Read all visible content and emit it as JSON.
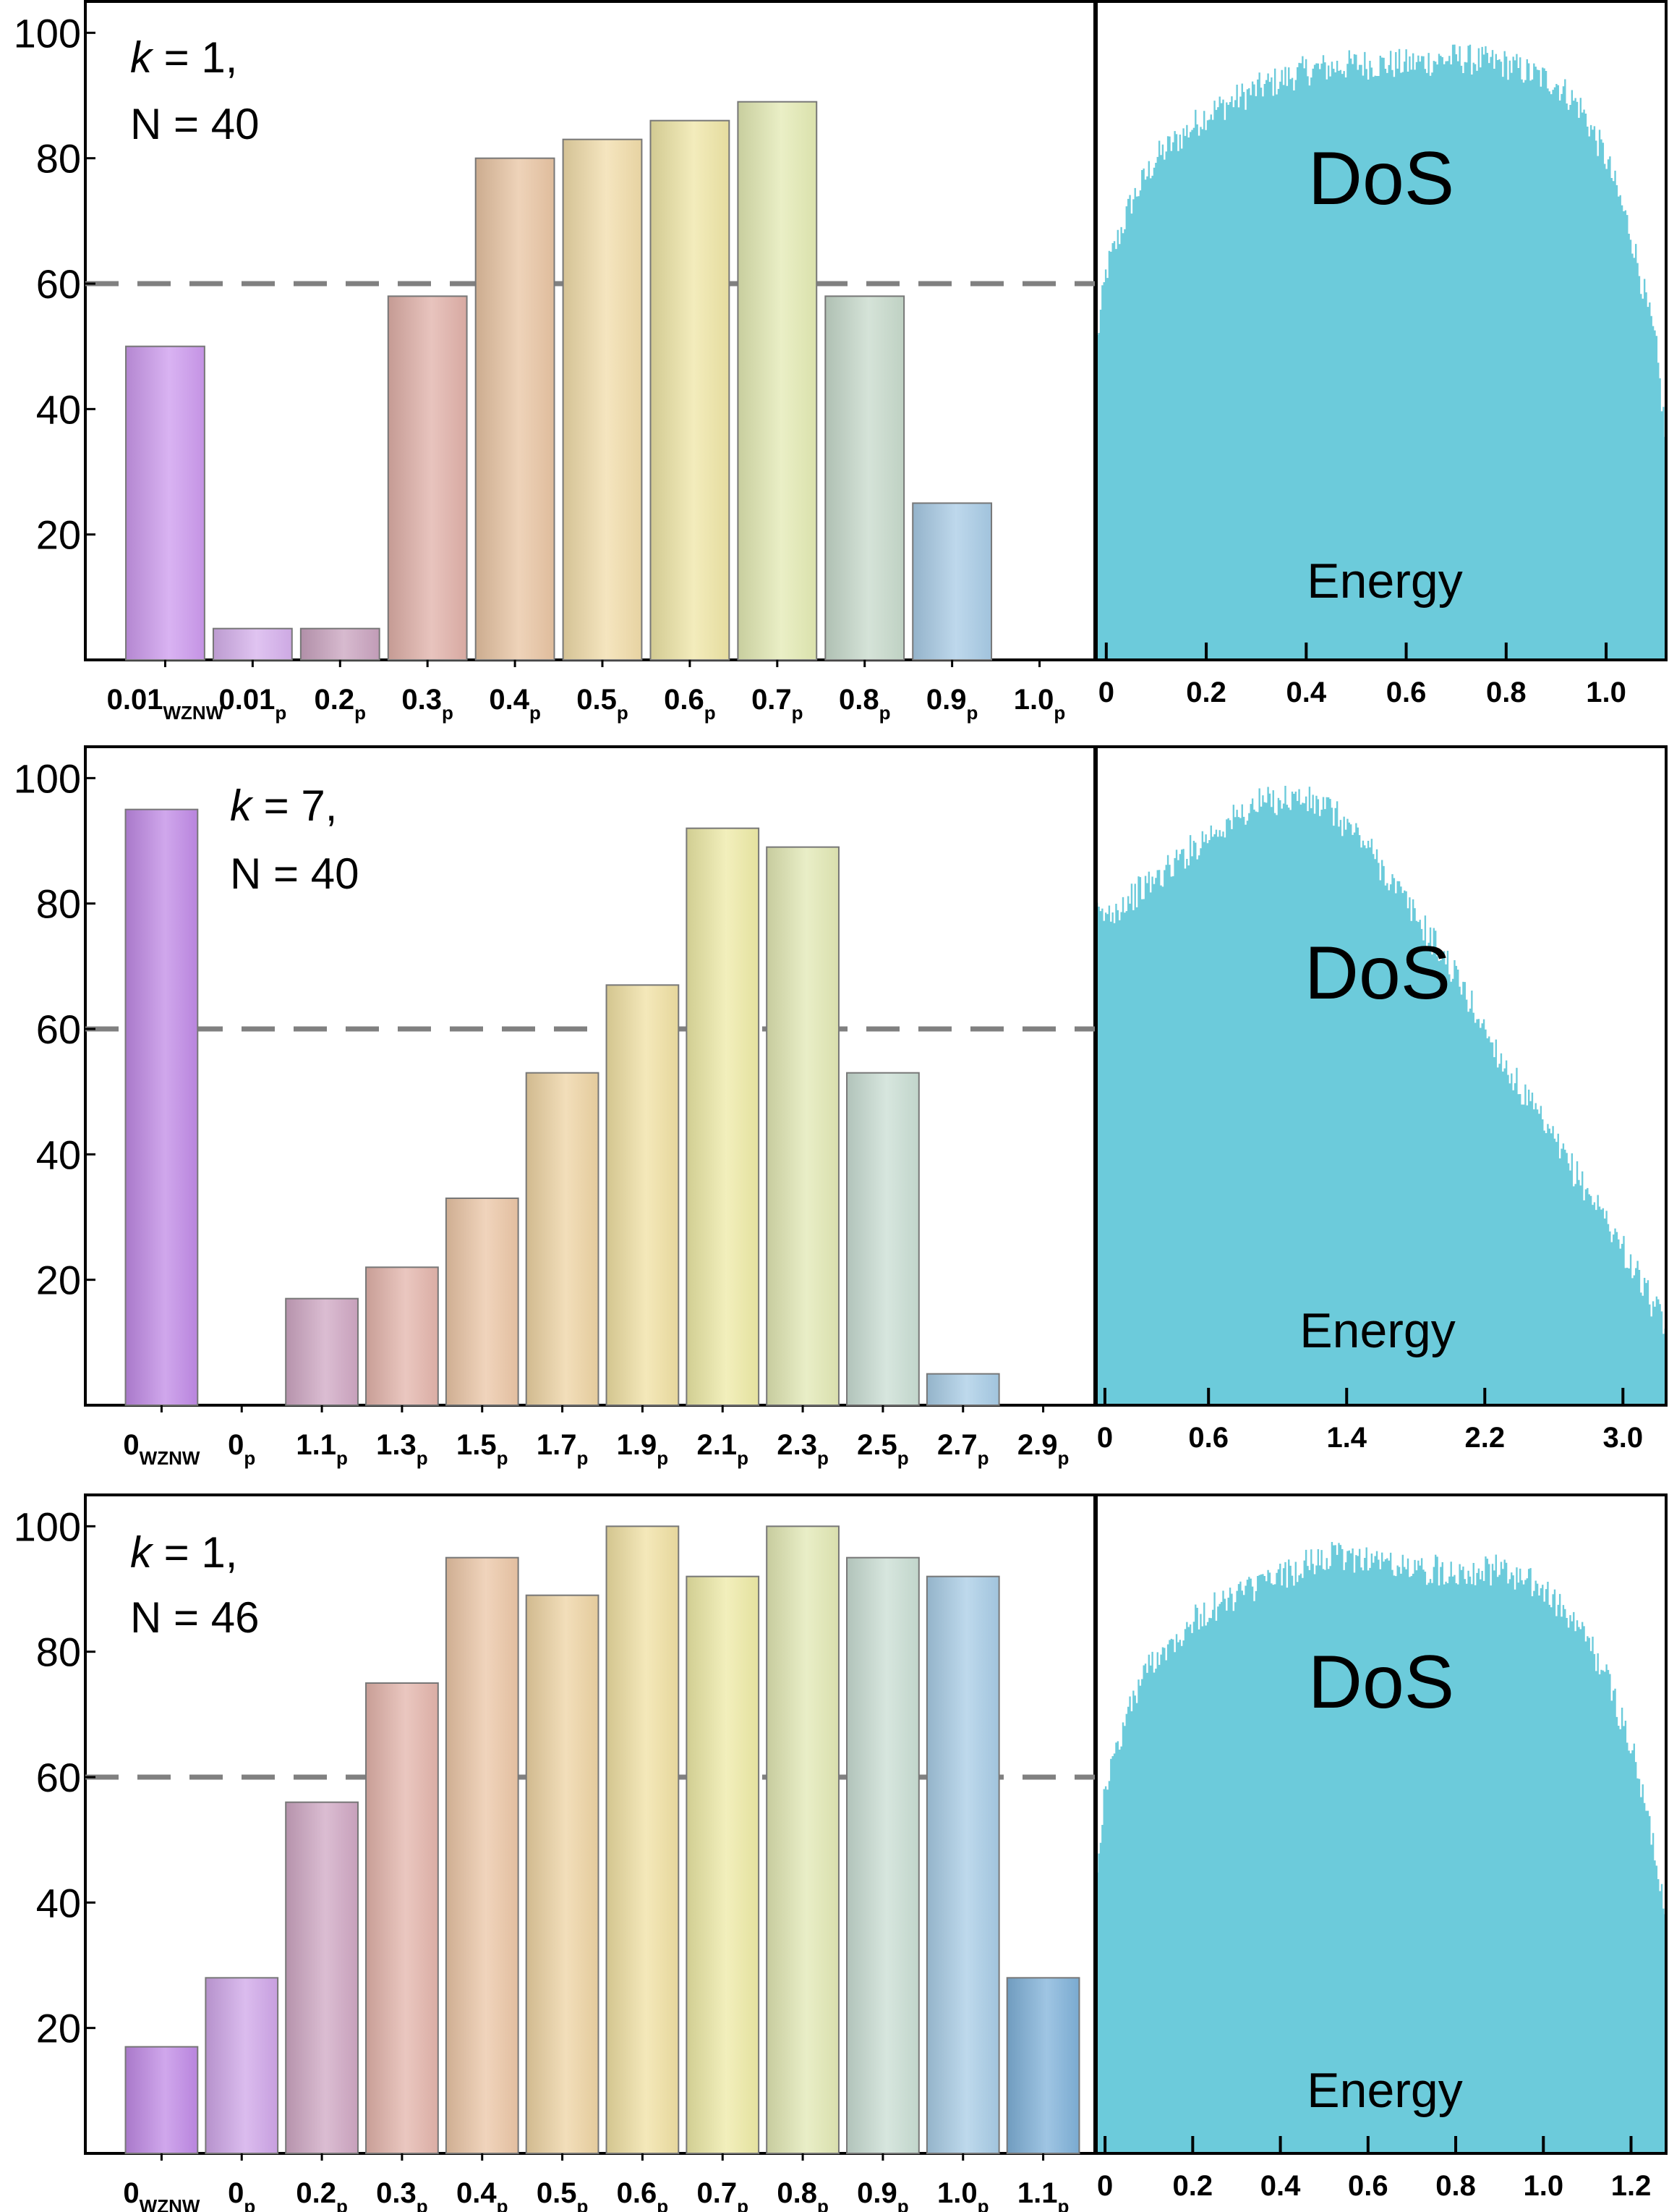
{
  "chart_data": [
    {
      "type": "bar",
      "annotation": {
        "k_label": "k",
        "k_value": " = 1,",
        "n_line": "N = 40"
      },
      "categories": [
        {
          "main": "0.01",
          "sub": "WZNW"
        },
        {
          "main": "0.01",
          "sub": "p"
        },
        {
          "main": "0.2",
          "sub": "p"
        },
        {
          "main": "0.3",
          "sub": "p"
        },
        {
          "main": "0.4",
          "sub": "p"
        },
        {
          "main": "0.5",
          "sub": "p"
        },
        {
          "main": "0.6",
          "sub": "p"
        },
        {
          "main": "0.7",
          "sub": "p"
        },
        {
          "main": "0.8",
          "sub": "p"
        },
        {
          "main": "0.9",
          "sub": "p"
        },
        {
          "main": "1.0",
          "sub": "p"
        }
      ],
      "values": [
        50,
        5,
        5,
        58,
        80,
        83,
        86,
        89,
        58,
        25,
        0
      ],
      "colors": [
        "#cc99ee",
        "#d6b0ec",
        "#c9a3bf",
        "#e0b0a8",
        "#e8c4a2",
        "#f1dca9",
        "#efe5a6",
        "#e3eab3",
        "#c7dacb",
        "#a8cbe5",
        "#9fc6e4"
      ],
      "ylim": [
        0,
        105
      ],
      "yticks": [
        "20",
        "40",
        "60",
        "80",
        "100"
      ],
      "reference_line": 60,
      "dos": {
        "label": "DoS",
        "xlabel": "Energy",
        "xticks": [
          "0",
          "0.2",
          "0.4",
          "0.6",
          "0.8",
          "1.0"
        ],
        "xlim": [
          -0.02,
          1.12
        ],
        "ylim": [
          0,
          105
        ],
        "color": "#6ccbdb",
        "profile": [
          [
            -0.02,
            50
          ],
          [
            0.0,
            62
          ],
          [
            0.05,
            73
          ],
          [
            0.1,
            80
          ],
          [
            0.2,
            87
          ],
          [
            0.3,
            91
          ],
          [
            0.4,
            94
          ],
          [
            0.5,
            95
          ],
          [
            0.6,
            95
          ],
          [
            0.7,
            96
          ],
          [
            0.8,
            95
          ],
          [
            0.9,
            92
          ],
          [
            0.95,
            88
          ],
          [
            1.0,
            80
          ],
          [
            1.05,
            68
          ],
          [
            1.1,
            50
          ],
          [
            1.12,
            35
          ]
        ]
      }
    },
    {
      "type": "bar",
      "annotation": {
        "k_label": "k",
        "k_value": " = 7,",
        "n_line": "N = 40"
      },
      "categories": [
        {
          "main": "0",
          "sub": "WZNW"
        },
        {
          "main": "0",
          "sub": "p"
        },
        {
          "main": "1.1",
          "sub": "p"
        },
        {
          "main": "1.3",
          "sub": "p"
        },
        {
          "main": "1.5",
          "sub": "p"
        },
        {
          "main": "1.7",
          "sub": "p"
        },
        {
          "main": "1.9",
          "sub": "p"
        },
        {
          "main": "2.1",
          "sub": "p"
        },
        {
          "main": "2.3",
          "sub": "p"
        },
        {
          "main": "2.5",
          "sub": "p"
        },
        {
          "main": "2.7",
          "sub": "p"
        },
        {
          "main": "2.9",
          "sub": "p"
        }
      ],
      "values": [
        95,
        0,
        17,
        22,
        33,
        53,
        67,
        92,
        89,
        53,
        5,
        0
      ],
      "colors": [
        "#c08ae6",
        "#cfa6e8",
        "#cfa7c3",
        "#e3b4ab",
        "#ebc6a6",
        "#eed3a3",
        "#f0e0a3",
        "#edeaa6",
        "#e2e8b4",
        "#c9ded3",
        "#a8cce6",
        "#9fc6e4"
      ],
      "ylim": [
        0,
        105
      ],
      "yticks": [
        "20",
        "40",
        "60",
        "80",
        "100"
      ],
      "reference_line": 60,
      "dos": {
        "label": "DoS",
        "xlabel": "Energy",
        "xticks": [
          "0",
          "0.6",
          "1.4",
          "2.2",
          "3.0"
        ],
        "tick_values": [
          0,
          0.6,
          1.4,
          2.2,
          3.0
        ],
        "xlim": [
          -0.05,
          3.25
        ],
        "ylim": [
          0,
          105
        ],
        "color": "#6ccbdb",
        "profile": [
          [
            -0.05,
            78
          ],
          [
            0.0,
            78
          ],
          [
            0.3,
            84
          ],
          [
            0.6,
            91
          ],
          [
            0.9,
            96
          ],
          [
            1.1,
            97
          ],
          [
            1.3,
            95
          ],
          [
            1.5,
            90
          ],
          [
            1.7,
            82
          ],
          [
            2.0,
            70
          ],
          [
            2.3,
            55
          ],
          [
            2.6,
            42
          ],
          [
            2.9,
            30
          ],
          [
            3.1,
            20
          ],
          [
            3.25,
            12
          ]
        ]
      }
    },
    {
      "type": "bar",
      "annotation": {
        "k_label": "k",
        "k_value": " = 1,",
        "n_line": "N = 46"
      },
      "categories": [
        {
          "main": "0",
          "sub": "WZNW"
        },
        {
          "main": "0",
          "sub": "p"
        },
        {
          "main": "0.2",
          "sub": "p"
        },
        {
          "main": "0.3",
          "sub": "p"
        },
        {
          "main": "0.4",
          "sub": "p"
        },
        {
          "main": "0.5",
          "sub": "p"
        },
        {
          "main": "0.6",
          "sub": "p"
        },
        {
          "main": "0.7",
          "sub": "p"
        },
        {
          "main": "0.8",
          "sub": "p"
        },
        {
          "main": "0.9",
          "sub": "p"
        },
        {
          "main": "1.0",
          "sub": "p"
        },
        {
          "main": "1.1",
          "sub": "p"
        }
      ],
      "values": [
        17,
        28,
        56,
        75,
        95,
        89,
        100,
        92,
        100,
        95,
        92,
        28
      ],
      "colors": [
        "#c08ae6",
        "#cfa6e8",
        "#cfa7c3",
        "#e3b4ab",
        "#ebc6a6",
        "#eed3a3",
        "#f0e0a3",
        "#edeaa6",
        "#e2e8b4",
        "#c9ded3",
        "#a8cce6",
        "#7fb1d9"
      ],
      "ylim": [
        0,
        105
      ],
      "yticks": [
        "20",
        "40",
        "60",
        "80",
        "100"
      ],
      "reference_line": 60,
      "dos": {
        "label": "DoS",
        "xlabel": "Energy",
        "xticks": [
          "0",
          "0.2",
          "0.4",
          "0.6",
          "0.8",
          "1.0",
          "1.2"
        ],
        "xlim": [
          -0.02,
          1.28
        ],
        "ylim": [
          0,
          105
        ],
        "color": "#6ccbdb",
        "profile": [
          [
            -0.02,
            45
          ],
          [
            0.0,
            58
          ],
          [
            0.05,
            70
          ],
          [
            0.1,
            78
          ],
          [
            0.2,
            85
          ],
          [
            0.3,
            89
          ],
          [
            0.4,
            92
          ],
          [
            0.5,
            95
          ],
          [
            0.6,
            95
          ],
          [
            0.7,
            93
          ],
          [
            0.8,
            93
          ],
          [
            0.9,
            93
          ],
          [
            1.0,
            90
          ],
          [
            1.1,
            82
          ],
          [
            1.15,
            75
          ],
          [
            1.2,
            65
          ],
          [
            1.25,
            50
          ],
          [
            1.28,
            38
          ]
        ]
      }
    }
  ]
}
